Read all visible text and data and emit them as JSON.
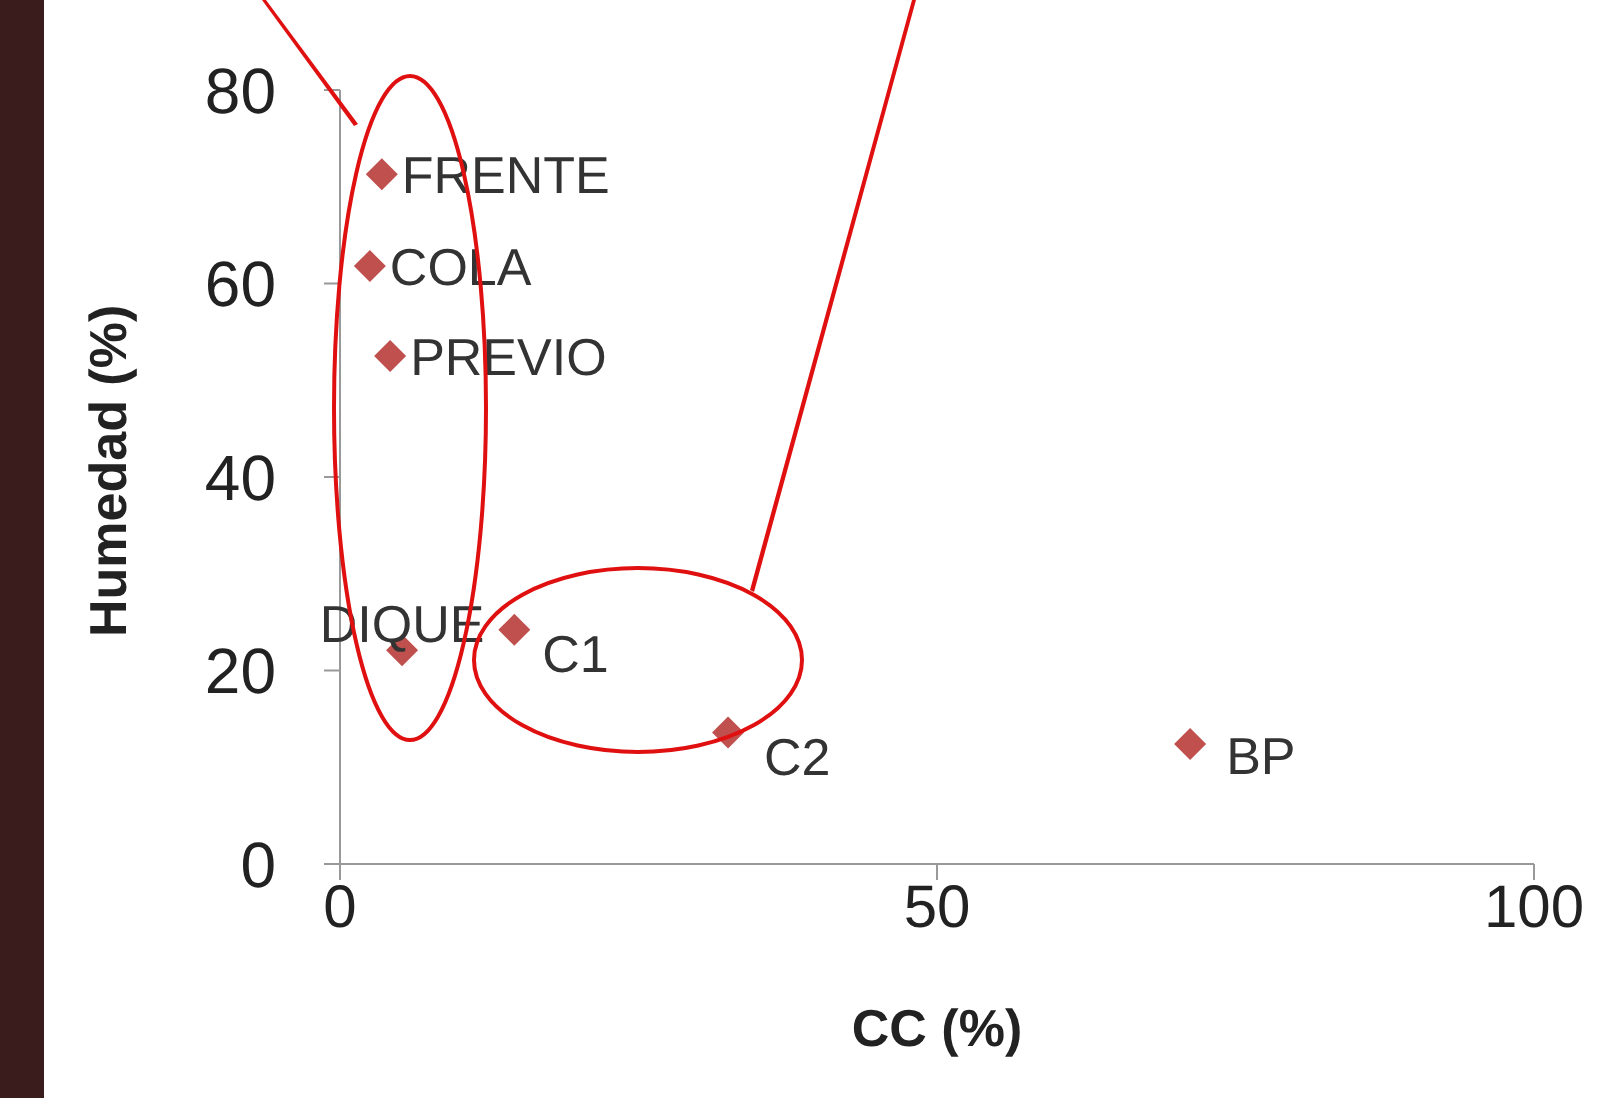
{
  "chart_data": {
    "type": "scatter",
    "xlabel": "CC (%)",
    "ylabel": "Humedad (%)",
    "x": [
      3.5,
      2.5,
      4.2,
      5.2,
      14.6,
      32.5,
      71.2
    ],
    "series": [
      {
        "color": "#c0504d",
        "values": [
          71.3,
          61.8,
          52.5,
          22.1,
          24.2,
          13.6,
          12.4
        ]
      }
    ],
    "marker": "diamond",
    "grid": false,
    "legend": false,
    "xlim": [
      0,
      100
    ],
    "xticks": [
      0,
      50,
      100
    ],
    "ylim": [
      0,
      80
    ],
    "yticks": [
      0,
      20,
      40,
      60,
      80
    ],
    "annotations": [
      {
        "text": "FRENTE",
        "x": 3.5,
        "y": 71.3
      },
      {
        "text": "COLA",
        "x": 2.5,
        "y": 61.8
      },
      {
        "text": "PREVIO",
        "x": 4.2,
        "y": 52.5
      },
      {
        "text": "DIQUE",
        "x": 5.2,
        "y": 22.1
      },
      {
        "text": "C1",
        "x": 14.6,
        "y": 24.2
      },
      {
        "text": "C2",
        "x": 32.5,
        "y": 13.6
      },
      {
        "text": "BP",
        "x": 71.2,
        "y": 12.4
      }
    ]
  }
}
